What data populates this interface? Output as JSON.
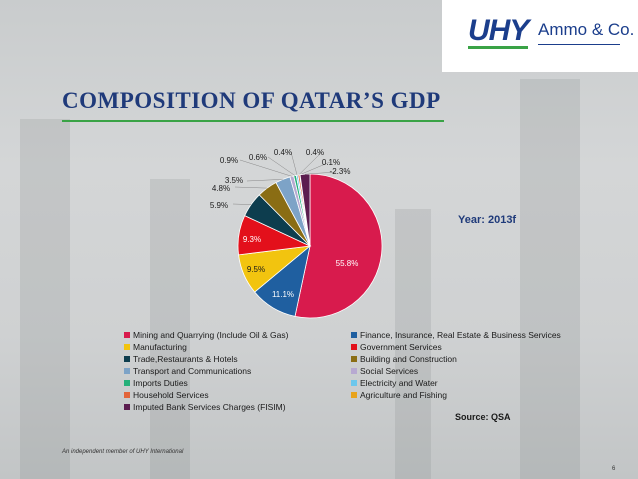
{
  "logo": {
    "brand": "UHY",
    "firm": "Ammo & Co."
  },
  "slide": {
    "title": "COMPOSITION OF QATAR’S GDP",
    "year_label": "Year: 2013f",
    "source": "Source: QSA",
    "footer": "An independent member of UHY International",
    "page_number": "6"
  },
  "chart_data": {
    "type": "pie",
    "slices": [
      {
        "label": "Mining and Quarrying (Include Oil & Gas)",
        "value": 55.8,
        "value_label": "55.8%",
        "color": "#d81b4d"
      },
      {
        "label": "Finance, Insurance, Real Estate & Business Services",
        "value": 11.1,
        "value_label": "11.1%",
        "color": "#1f5fa0"
      },
      {
        "label": "Manufacturing",
        "value": 9.5,
        "value_label": "9.5%",
        "color": "#f2c40f"
      },
      {
        "label": "Government Services",
        "value": 9.3,
        "value_label": "9.3%",
        "color": "#e3101b"
      },
      {
        "label": "Trade,Restaurants & Hotels",
        "value": 5.9,
        "value_label": "5.9%",
        "color": "#0d3d4e"
      },
      {
        "label": "Building and Construction",
        "value": 4.8,
        "value_label": "4.8%",
        "color": "#8a6d14"
      },
      {
        "label": "Transport and Communications",
        "value": 3.5,
        "value_label": "3.5%",
        "color": "#7da3c7"
      },
      {
        "label": "Social Services",
        "value": 0.9,
        "value_label": "0.9%",
        "color": "#b7a9d1"
      },
      {
        "label": "Imports Duties",
        "value": 0.6,
        "value_label": "0.6%",
        "color": "#25b07a"
      },
      {
        "label": "Electricity and Water",
        "value": 0.4,
        "value_label": "0.4%",
        "color": "#6cc7ec"
      },
      {
        "label": "Household Services",
        "value": 0.4,
        "value_label": "0.4%",
        "color": "#e2643a"
      },
      {
        "label": "Agriculture and Fishing",
        "value": 0.1,
        "value_label": "0.1%",
        "color": "#e8a31c"
      },
      {
        "label": "Imputed Bank Services Charges (FISIM)",
        "value": -2.3,
        "value_label": "-2.3%",
        "color": "#5b1d4f"
      }
    ]
  }
}
